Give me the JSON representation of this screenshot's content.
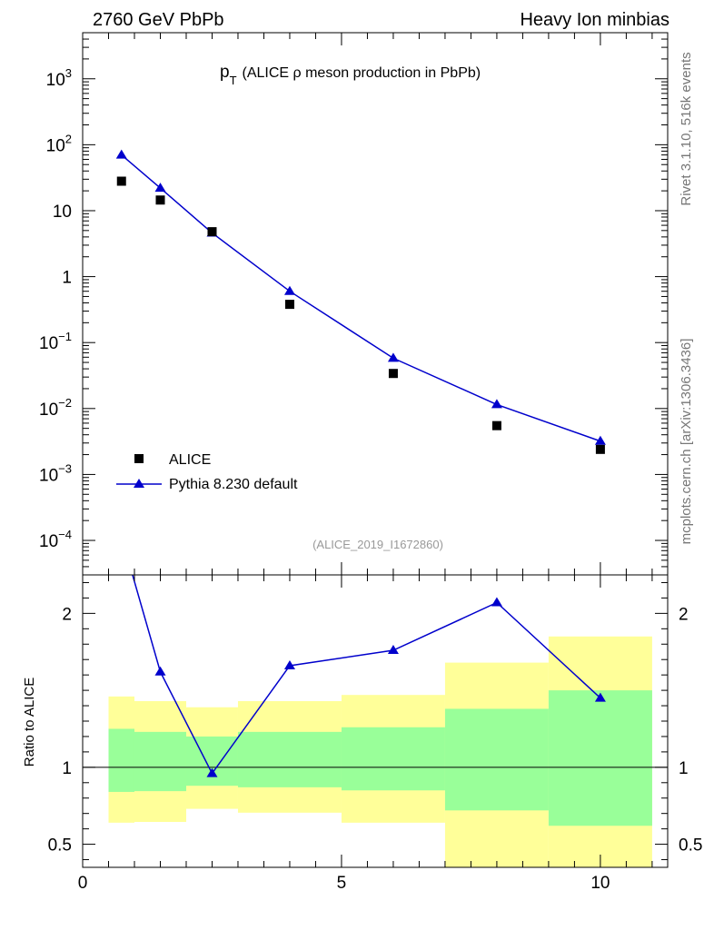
{
  "header": {
    "left": "2760 GeV PbPb",
    "right": "Heavy Ion minbias"
  },
  "side_labels": {
    "top": "Rivet 3.1.10,  516k events",
    "bottom": "mcplots.cern.ch [arXiv:1306.3436]"
  },
  "chart_data": [
    {
      "type": "scatter",
      "title": "p_T (ALICE ρ meson production in PbPb)",
      "title_main": "p",
      "title_sub": "T",
      "title_rest": "(ALICE ρ meson production in PbPb)",
      "watermark": "(ALICE_2019_I1672860)",
      "xlim": [
        0,
        11.3
      ],
      "ylim": [
        3e-05,
        5000
      ],
      "yscale": "log",
      "yticks": [
        {
          "value": 0.0001,
          "base": "10",
          "exp": "−4"
        },
        {
          "value": 0.001,
          "base": "10",
          "exp": "−3"
        },
        {
          "value": 0.01,
          "base": "10",
          "exp": "−2"
        },
        {
          "value": 0.1,
          "base": "10",
          "exp": "−1"
        },
        {
          "value": 1,
          "base": "1",
          "exp": ""
        },
        {
          "value": 10,
          "base": "10",
          "exp": ""
        },
        {
          "value": 100,
          "base": "10",
          "exp": "2"
        },
        {
          "value": 1000,
          "base": "10",
          "exp": "3"
        }
      ],
      "legend_position": "lower-left",
      "series": [
        {
          "name": "ALICE",
          "marker": "square",
          "color": "#000000",
          "x": [
            0.75,
            1.5,
            2.5,
            4,
            6,
            8,
            10
          ],
          "y": [
            28,
            14.5,
            4.8,
            0.38,
            0.034,
            0.0055,
            0.0024
          ]
        },
        {
          "name": "Pythia 8.230 default",
          "marker": "triangle",
          "color": "#0000cc",
          "x": [
            0.75,
            1.5,
            2.5,
            4,
            6,
            8,
            10
          ],
          "y": [
            70,
            22,
            4.6,
            0.6,
            0.058,
            0.0115,
            0.0032
          ]
        }
      ]
    },
    {
      "type": "line",
      "ylabel": "Ratio to ALICE",
      "xlim": [
        0,
        11.3
      ],
      "ylim": [
        0.35,
        2.25
      ],
      "yticks": [
        0.5,
        1,
        2
      ],
      "xticks": [
        0,
        5,
        10
      ],
      "reference_line": 1,
      "bands": {
        "colors": {
          "stat": "#99ff99",
          "total": "#ffff99"
        },
        "bins": [
          {
            "x0": 0.5,
            "x1": 1.0,
            "stat": [
              0.84,
              1.25
            ],
            "total": [
              0.64,
              1.46
            ]
          },
          {
            "x0": 1.0,
            "x1": 2.0,
            "stat": [
              0.845,
              1.23
            ],
            "total": [
              0.645,
              1.43
            ]
          },
          {
            "x0": 2.0,
            "x1": 3.0,
            "stat": [
              0.88,
              1.2
            ],
            "total": [
              0.73,
              1.39
            ]
          },
          {
            "x0": 3.0,
            "x1": 5.0,
            "stat": [
              0.87,
              1.23
            ],
            "total": [
              0.705,
              1.43
            ]
          },
          {
            "x0": 5.0,
            "x1": 7.0,
            "stat": [
              0.85,
              1.26
            ],
            "total": [
              0.64,
              1.47
            ]
          },
          {
            "x0": 7.0,
            "x1": 9.0,
            "stat": [
              0.72,
              1.38
            ],
            "total": [
              0.35,
              1.68
            ]
          },
          {
            "x0": 9.0,
            "x1": 11.0,
            "stat": [
              0.62,
              1.5
            ],
            "total": [
              0.35,
              1.85
            ]
          }
        ]
      },
      "series": [
        {
          "name": "Pythia 8.230 default",
          "color": "#0000cc",
          "x": [
            0.75,
            1.5,
            2.5,
            4,
            6,
            8,
            10
          ],
          "y": [
            2.5,
            1.62,
            0.96,
            1.66,
            1.76,
            2.07,
            1.45
          ]
        }
      ]
    }
  ]
}
